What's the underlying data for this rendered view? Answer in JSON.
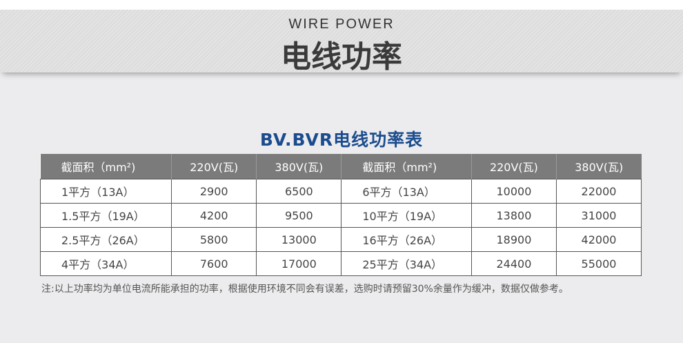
{
  "header": {
    "en": "WIRE POWER",
    "cn": "电线功率"
  },
  "table_title": "BV.BVR电线功率表",
  "columns": [
    "截面积（mm²)",
    "220V(瓦)",
    "380V(瓦)",
    "截面积（mm²)",
    "220V(瓦)",
    "380V(瓦)"
  ],
  "rows": [
    [
      "1平方（13A）",
      "2900",
      "6500",
      "6平方（13A）",
      "10000",
      "22000"
    ],
    [
      "1.5平方（19A）",
      "4200",
      "9500",
      "10平方（19A）",
      "13800",
      "31000"
    ],
    [
      "2.5平方（26A）",
      "5800",
      "13000",
      "16平方（26A）",
      "18900",
      "42000"
    ],
    [
      "4平方（34A）",
      "7600",
      "17000",
      "25平方（34A）",
      "24400",
      "55000"
    ]
  ],
  "note": "注:以上功率均为单位电流所能承担的功率，根据使用环境不同会有误差，选购时请预留30%余量作为缓冲，数据仅做参考。"
}
